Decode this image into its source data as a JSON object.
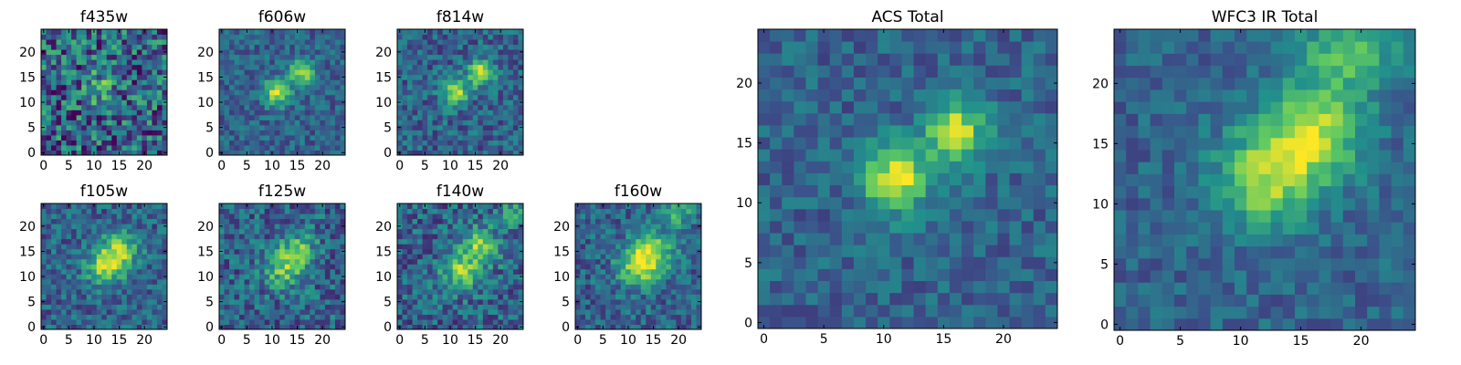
{
  "figure": {
    "colormap": "viridis",
    "colormap_stops": [
      "#440154",
      "#3b528b",
      "#21918c",
      "#5ec962",
      "#fde725"
    ]
  },
  "chart_data": [
    {
      "type": "heatmap",
      "title": "f435w",
      "xlim": [
        -0.5,
        24.5
      ],
      "ylim": [
        -0.5,
        24.5
      ],
      "xticks": [
        0,
        5,
        10,
        15,
        20
      ],
      "yticks": [
        0,
        5,
        10,
        15,
        20
      ],
      "grid_size": [
        25,
        25
      ],
      "value_range": [
        0,
        1
      ],
      "noise_level": 0.55,
      "seed": 11,
      "sources": [
        {
          "x": 13,
          "y": 16,
          "amp": 0.2,
          "sigma": 2.2
        },
        {
          "x": 11,
          "y": 12,
          "amp": 0.18,
          "sigma": 2.2
        }
      ]
    },
    {
      "type": "heatmap",
      "title": "f606w",
      "xlim": [
        -0.5,
        24.5
      ],
      "ylim": [
        -0.5,
        24.5
      ],
      "xticks": [
        0,
        5,
        10,
        15,
        20
      ],
      "yticks": [
        0,
        5,
        10,
        15,
        20
      ],
      "grid_size": [
        25,
        25
      ],
      "value_range": [
        0,
        1
      ],
      "noise_level": 0.25,
      "seed": 23,
      "sources": [
        {
          "x": 16,
          "y": 16,
          "amp": 0.55,
          "sigma": 1.7
        },
        {
          "x": 11,
          "y": 12,
          "amp": 0.6,
          "sigma": 1.8
        }
      ]
    },
    {
      "type": "heatmap",
      "title": "f814w",
      "xlim": [
        -0.5,
        24.5
      ],
      "ylim": [
        -0.5,
        24.5
      ],
      "xticks": [
        0,
        5,
        10,
        15,
        20
      ],
      "yticks": [
        0,
        5,
        10,
        15,
        20
      ],
      "grid_size": [
        25,
        25
      ],
      "value_range": [
        0,
        1
      ],
      "noise_level": 0.3,
      "seed": 37,
      "sources": [
        {
          "x": 16,
          "y": 16,
          "amp": 0.55,
          "sigma": 1.8
        },
        {
          "x": 11,
          "y": 12,
          "amp": 0.55,
          "sigma": 1.8
        }
      ]
    },
    {
      "type": "heatmap",
      "title": "f105w",
      "xlim": [
        -0.5,
        24.5
      ],
      "ylim": [
        -0.5,
        24.5
      ],
      "xticks": [
        0,
        5,
        10,
        15,
        20
      ],
      "yticks": [
        0,
        5,
        10,
        15,
        20
      ],
      "grid_size": [
        25,
        25
      ],
      "value_range": [
        0,
        1
      ],
      "noise_level": 0.3,
      "seed": 41,
      "sources": [
        {
          "x": 15,
          "y": 15,
          "amp": 0.5,
          "sigma": 2.5
        },
        {
          "x": 12,
          "y": 12,
          "amp": 0.45,
          "sigma": 2.5
        }
      ]
    },
    {
      "type": "heatmap",
      "title": "f125w",
      "xlim": [
        -0.5,
        24.5
      ],
      "ylim": [
        -0.5,
        24.5
      ],
      "xticks": [
        0,
        5,
        10,
        15,
        20
      ],
      "yticks": [
        0,
        5,
        10,
        15,
        20
      ],
      "grid_size": [
        25,
        25
      ],
      "value_range": [
        0,
        1
      ],
      "noise_level": 0.35,
      "seed": 53,
      "sources": [
        {
          "x": 15,
          "y": 15,
          "amp": 0.4,
          "sigma": 2.6
        },
        {
          "x": 12,
          "y": 11,
          "amp": 0.35,
          "sigma": 2.6
        }
      ]
    },
    {
      "type": "heatmap",
      "title": "f140w",
      "xlim": [
        -0.5,
        24.5
      ],
      "ylim": [
        -0.5,
        24.5
      ],
      "xticks": [
        0,
        5,
        10,
        15,
        20
      ],
      "yticks": [
        0,
        5,
        10,
        15,
        20
      ],
      "grid_size": [
        25,
        25
      ],
      "value_range": [
        0,
        1
      ],
      "noise_level": 0.35,
      "seed": 67,
      "sources": [
        {
          "x": 16,
          "y": 16,
          "amp": 0.45,
          "sigma": 2.6
        },
        {
          "x": 12,
          "y": 11,
          "amp": 0.45,
          "sigma": 2.6
        },
        {
          "x": 23,
          "y": 23,
          "amp": 0.3,
          "sigma": 2
        }
      ]
    },
    {
      "type": "heatmap",
      "title": "f160w",
      "xlim": [
        -0.5,
        24.5
      ],
      "ylim": [
        -0.5,
        24.5
      ],
      "xticks": [
        0,
        5,
        10,
        15,
        20
      ],
      "yticks": [
        0,
        5,
        10,
        15,
        20
      ],
      "grid_size": [
        25,
        25
      ],
      "value_range": [
        0,
        1
      ],
      "noise_level": 0.3,
      "seed": 79,
      "sources": [
        {
          "x": 15,
          "y": 15,
          "amp": 0.45,
          "sigma": 2.8
        },
        {
          "x": 12,
          "y": 12,
          "amp": 0.5,
          "sigma": 2.8
        },
        {
          "x": 20,
          "y": 23,
          "amp": 0.3,
          "sigma": 2.2
        }
      ]
    },
    {
      "type": "heatmap",
      "title": "ACS Total",
      "xlim": [
        -0.5,
        24.5
      ],
      "ylim": [
        -0.5,
        24.5
      ],
      "xticks": [
        0,
        5,
        10,
        15,
        20
      ],
      "yticks": [
        0,
        5,
        10,
        15,
        20
      ],
      "grid_size": [
        25,
        25
      ],
      "value_range": [
        0,
        1
      ],
      "noise_level": 0.22,
      "seed": 97,
      "sources": [
        {
          "x": 16,
          "y": 16,
          "amp": 0.6,
          "sigma": 1.8
        },
        {
          "x": 11,
          "y": 12,
          "amp": 0.65,
          "sigma": 1.9
        }
      ]
    },
    {
      "type": "heatmap",
      "title": "WFC3 IR Total",
      "xlim": [
        -0.5,
        24.5
      ],
      "ylim": [
        -0.5,
        24.5
      ],
      "xticks": [
        0,
        5,
        10,
        15,
        20
      ],
      "yticks": [
        0,
        5,
        10,
        15,
        20
      ],
      "grid_size": [
        25,
        25
      ],
      "value_range": [
        0,
        1
      ],
      "noise_level": 0.2,
      "seed": 113,
      "sources": [
        {
          "x": 16,
          "y": 16,
          "amp": 0.55,
          "sigma": 2.8
        },
        {
          "x": 12,
          "y": 12,
          "amp": 0.5,
          "sigma": 2.8
        },
        {
          "x": 19,
          "y": 23,
          "amp": 0.4,
          "sigma": 2.6
        }
      ]
    }
  ]
}
